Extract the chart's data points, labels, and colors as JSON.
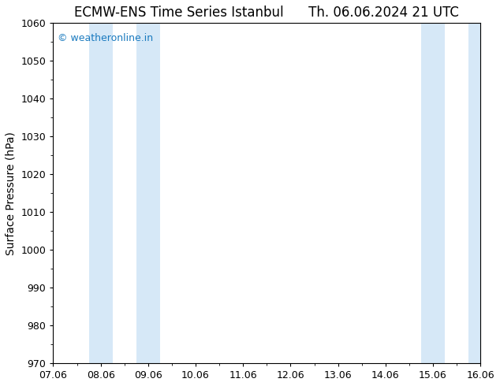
{
  "title_left": "ECMW-ENS Time Series Istanbul",
  "title_right": "Th. 06.06.2024 21 UTC",
  "ylabel": "Surface Pressure (hPa)",
  "ylim": [
    970,
    1060
  ],
  "yticks": [
    970,
    980,
    990,
    1000,
    1010,
    1020,
    1030,
    1040,
    1050,
    1060
  ],
  "xlim": [
    0,
    9
  ],
  "xtick_labels": [
    "07.06",
    "08.06",
    "09.06",
    "10.06",
    "11.06",
    "12.06",
    "13.06",
    "14.06",
    "15.06",
    "16.06"
  ],
  "xtick_positions": [
    0,
    1,
    2,
    3,
    4,
    5,
    6,
    7,
    8,
    9
  ],
  "shaded_regions": [
    {
      "xmin": 1.0,
      "xmax": 1.5
    },
    {
      "xmin": 1.9,
      "xmax": 2.5
    },
    {
      "xmin": 7.9,
      "xmax": 8.4
    },
    {
      "xmin": 8.85,
      "xmax": 9.0
    }
  ],
  "band_color": "#d6e8f7",
  "background_color": "#ffffff",
  "watermark": "© weatheronline.in",
  "watermark_color": "#1a7abf",
  "title_fontsize": 12,
  "label_fontsize": 10,
  "tick_fontsize": 9,
  "watermark_fontsize": 9
}
